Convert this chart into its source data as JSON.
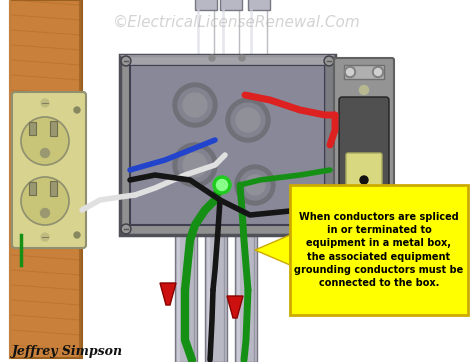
{
  "background_color": "#ffffff",
  "watermark": "©ElectricalLicenseRenewal.Com",
  "watermark_color": "#b0b0b0",
  "watermark_fontsize": 11,
  "author": "Jeffrey Simpson",
  "author_fontsize": 9,
  "annotation_text": "When conductors are spliced\nin or terminated to\nequipment in a metal box,\nthe associated equipment\ngrounding conductors must be\nconnected to the box.",
  "annotation_box_color": "#ffff00",
  "annotation_box_edge": "#ccaa00",
  "annotation_text_color": "#000000",
  "annotation_fontsize": 7.0,
  "wood_color": "#c8803a",
  "wood_dark": "#9a6020",
  "wood_grain": "#b06828",
  "box_outer_color": "#909090",
  "box_inner_color": "#a0a0a8",
  "box_face_color": "#888898",
  "conduit_color": "#b8b8c4",
  "conduit_dark": "#787884",
  "conduit_highlight": "#d8d8e4",
  "outlet_body": "#d8d490",
  "outlet_dark": "#b0ac60",
  "outlet_face": "#c8c478",
  "switch_body": "#505050",
  "switch_plate": "#949494",
  "switch_toggle": "#d8d880",
  "wire_red": "#dd2020",
  "wire_black": "#151515",
  "wire_white": "#e0e0e0",
  "wire_green": "#159015",
  "wire_blue": "#2244cc",
  "arrow_color": "#cc1010",
  "green_dot_color": "#20cc20",
  "fig_width": 4.74,
  "fig_height": 3.62,
  "dpi": 100
}
